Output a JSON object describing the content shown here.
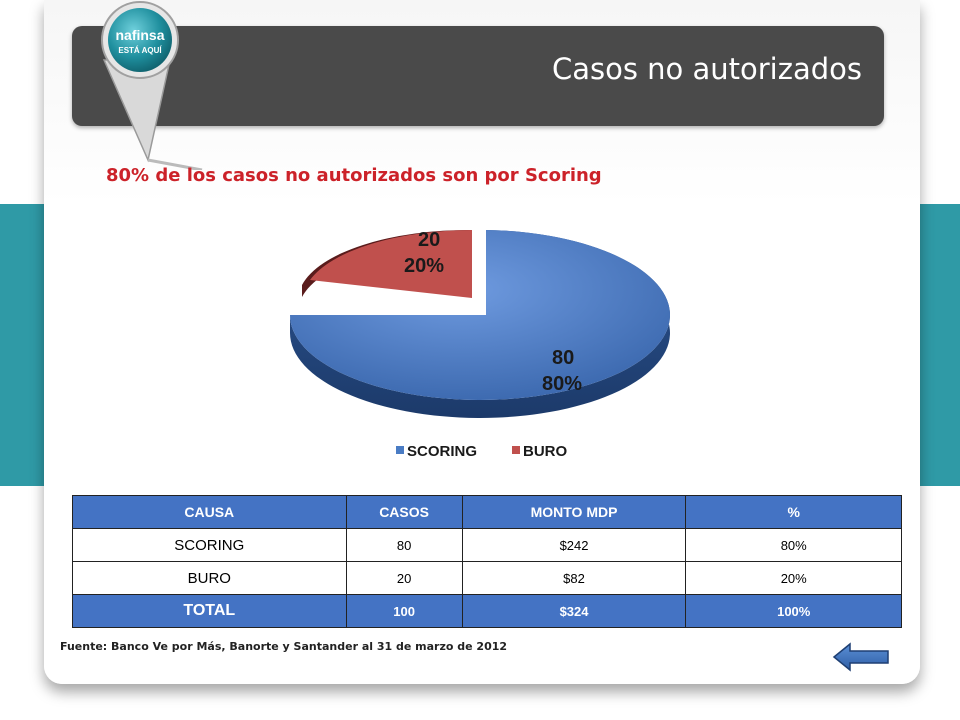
{
  "header": {
    "title": "Casos no autorizados",
    "logo": {
      "brand": "nafinsa",
      "tagline": "ESTÁ AQUÍ"
    }
  },
  "subtitle": "80% de los casos no autorizados son por Scoring",
  "chart_data": {
    "type": "pie",
    "title": "",
    "slices": [
      {
        "name": "SCORING",
        "value": 80,
        "value_label": "80",
        "percent_label": "80%",
        "color": "#4a7cc4"
      },
      {
        "name": "BURO",
        "value": 20,
        "value_label": "20",
        "percent_label": "20%",
        "color": "#c0504d"
      }
    ],
    "legend": {
      "placement": "bottom"
    },
    "style": "3d-exploded"
  },
  "table": {
    "headers": [
      "CAUSA",
      "CASOS",
      "MONTO MDP",
      "%"
    ],
    "rows": [
      [
        "SCORING",
        "80",
        "$242",
        "80%"
      ],
      [
        "BURO",
        "20",
        "$82",
        "20%"
      ]
    ],
    "total": [
      "TOTAL",
      "100",
      "$324",
      "100%"
    ]
  },
  "source": "Fuente: Banco Ve por Más, Banorte y Santander al 31 de marzo de 2012",
  "colors": {
    "accent_red": "#cc2229",
    "table_blue": "#4473c4",
    "header_gray": "#4a4a4a",
    "side_teal": "#2f9aa6"
  },
  "icons": {
    "back": "back-arrow-icon"
  }
}
